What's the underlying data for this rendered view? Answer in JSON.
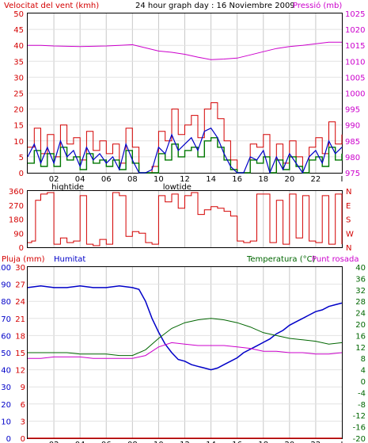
{
  "header": {
    "title": "24 hour graph day : 16 Noviembre 2009",
    "wind_label": "Velocitat del vent (kmh)",
    "pressure_label": "Pressió (mb)"
  },
  "bottom_header": {
    "rain_label": "Pluja (mm)",
    "humidity_label": "Humitat",
    "temp_label": "Temperatura (°C)",
    "dew_label": "Punt rosada"
  },
  "x_axis": {
    "ticks": [
      "02",
      "04",
      "06",
      "08",
      "10",
      "12",
      "14",
      "16",
      "18",
      "20",
      "22",
      "I"
    ],
    "tide_labels": [
      {
        "label": "hightide",
        "hour": 2
      },
      {
        "label": "lowtide",
        "hour": 10.5
      }
    ]
  },
  "colors": {
    "wind_gust": "#d40000",
    "wind_avg": "#0000c8",
    "wind_green": "#007700",
    "pressure": "#cc00cc",
    "humidity": "#0000c8",
    "temperature": "#006600",
    "dew_point": "#cc00cc",
    "rain": "#d40000",
    "grid": "#c8c8c8",
    "frame": "#000000"
  },
  "chart_data": [
    {
      "type": "line",
      "panel": "wind_pressure",
      "y_left": {
        "label": "Velocitat del vent (kmh)",
        "ticks": [
          0,
          5,
          10,
          15,
          20,
          25,
          30,
          35,
          40,
          45,
          50
        ],
        "range": [
          0,
          50
        ]
      },
      "y_right": {
        "label": "Pressió (mb)",
        "ticks": [
          975,
          980,
          985,
          990,
          995,
          1000,
          1005,
          1010,
          1015,
          1020,
          1025
        ],
        "range": [
          975,
          1025
        ]
      },
      "series": [
        {
          "name": "Pressió (mb)",
          "axis": "right",
          "x": [
            0,
            1,
            2,
            3,
            4,
            5,
            6,
            7,
            8,
            9,
            10,
            11,
            12,
            13,
            14,
            15,
            16,
            17,
            18,
            19,
            20,
            21,
            22,
            23,
            24
          ],
          "values": [
            1015,
            1015,
            1014.8,
            1014.7,
            1014.6,
            1014.7,
            1014.8,
            1015,
            1015.2,
            1014.2,
            1013.2,
            1012.8,
            1012.2,
            1011.3,
            1010.5,
            1010.7,
            1011,
            1012,
            1013,
            1014,
            1014.6,
            1015,
            1015.5,
            1016,
            1016
          ]
        },
        {
          "kind": "gust",
          "axis": "left",
          "x": [
            0,
            0.5,
            1,
            1.5,
            2,
            2.5,
            3,
            3.5,
            4,
            4.5,
            5,
            5.5,
            6,
            6.5,
            7,
            7.5,
            8,
            8.5,
            9,
            9.5,
            10,
            10.5,
            11,
            11.5,
            12,
            12.5,
            13,
            13.5,
            14,
            14.5,
            15,
            15.5,
            16,
            16.5,
            17,
            17.5,
            18,
            18.5,
            19,
            19.5,
            20,
            20.5,
            21,
            21.5,
            22,
            22.5,
            23,
            23.5,
            24
          ],
          "values": [
            8,
            14,
            6,
            12,
            5,
            15,
            9,
            11,
            4,
            13,
            7,
            10,
            6,
            9,
            3,
            14,
            8,
            0,
            0,
            2,
            13,
            10,
            20,
            12,
            15,
            18,
            11,
            20,
            22,
            17,
            10,
            4,
            0,
            0,
            9,
            8,
            12,
            0,
            9,
            3,
            10,
            5,
            0,
            8,
            11,
            6,
            16,
            9,
            12
          ]
        },
        {
          "kind": "average",
          "axis": "left",
          "x": [
            0,
            0.5,
            1,
            1.5,
            2,
            2.5,
            3,
            3.5,
            4,
            4.5,
            5,
            5.5,
            6,
            6.5,
            7,
            7.5,
            8,
            8.5,
            9,
            9.5,
            10,
            10.5,
            11,
            11.5,
            12,
            12.5,
            13,
            13.5,
            14,
            14.5,
            15,
            15.5,
            16,
            16.5,
            17,
            17.5,
            18,
            18.5,
            19,
            19.5,
            20,
            20.5,
            21,
            21.5,
            22,
            22.5,
            23,
            23.5,
            24
          ],
          "values": [
            5,
            9,
            3,
            8,
            3,
            10,
            5,
            7,
            2,
            8,
            4,
            6,
            3,
            5,
            1,
            9,
            4,
            0,
            0,
            1,
            8,
            6,
            12,
            7,
            9,
            11,
            7,
            13,
            14,
            11,
            6,
            2,
            0,
            0,
            5,
            4,
            7,
            0,
            5,
            1,
            6,
            3,
            0,
            5,
            7,
            3,
            10,
            6,
            8
          ]
        },
        {
          "kind": "green",
          "axis": "left",
          "x": [
            0,
            0.5,
            1,
            1.5,
            2,
            2.5,
            3,
            3.5,
            4,
            4.5,
            5,
            5.5,
            6,
            6.5,
            7,
            7.5,
            8,
            8.5,
            9,
            9.5,
            10,
            10.5,
            11,
            11.5,
            12,
            12.5,
            13,
            13.5,
            14,
            14.5,
            15,
            15.5,
            16,
            16.5,
            17,
            17.5,
            18,
            18.5,
            19,
            19.5,
            20,
            20.5,
            21,
            21.5,
            22,
            22.5,
            23,
            23.5,
            24
          ],
          "values": [
            3,
            7,
            2,
            6,
            2,
            8,
            4,
            5,
            1,
            6,
            3,
            4,
            2,
            4,
            1,
            7,
            3,
            0,
            0,
            0,
            6,
            4,
            9,
            5,
            7,
            8,
            5,
            10,
            11,
            8,
            4,
            1,
            0,
            0,
            4,
            3,
            5,
            0,
            4,
            1,
            5,
            2,
            0,
            4,
            5,
            2,
            8,
            4,
            6
          ]
        }
      ]
    },
    {
      "type": "line",
      "panel": "wind_direction",
      "y_left": {
        "ticks": [
          0,
          90,
          180,
          270,
          360
        ],
        "range": [
          0,
          360
        ]
      },
      "y_right": {
        "ticks": [
          "N",
          "E",
          "S",
          "W",
          "N"
        ]
      },
      "series": [
        {
          "kind": "direction",
          "x": [
            0,
            0.3,
            0.6,
            1,
            1.5,
            2,
            2.5,
            3,
            3.5,
            4,
            4.5,
            5,
            5.5,
            6,
            6.5,
            7,
            7.5,
            8,
            8.5,
            9,
            9.5,
            10,
            10.5,
            11,
            11.5,
            12,
            12.5,
            13,
            13.5,
            14,
            14.5,
            15,
            15.5,
            16,
            16.5,
            17,
            17.5,
            18,
            18.5,
            19,
            19.5,
            20,
            20.5,
            21,
            21.5,
            22,
            22.5,
            23,
            23.5,
            24
          ],
          "values": [
            30,
            40,
            300,
            340,
            350,
            20,
            60,
            30,
            40,
            330,
            20,
            10,
            50,
            20,
            350,
            330,
            70,
            100,
            90,
            30,
            20,
            330,
            290,
            340,
            250,
            330,
            350,
            210,
            240,
            260,
            250,
            230,
            200,
            40,
            30,
            40,
            340,
            340,
            30,
            300,
            20,
            340,
            60,
            330,
            40,
            30,
            330,
            20,
            340,
            20
          ]
        }
      ]
    },
    {
      "type": "line",
      "panel": "humidity_temperature",
      "y_left_rain": {
        "label": "Pluja (mm)",
        "ticks": [
          0,
          3,
          6,
          9,
          12,
          15,
          18,
          21,
          24,
          27,
          30
        ],
        "range": [
          0,
          30
        ]
      },
      "y_left_humidity": {
        "label": "Humitat",
        "ticks": [
          0,
          10,
          20,
          30,
          40,
          50,
          60,
          70,
          80,
          90,
          100
        ],
        "range": [
          0,
          100
        ]
      },
      "y_right": {
        "label": "Temperatura (°C)",
        "ticks": [
          -20,
          -16,
          -12,
          -8,
          -4,
          0,
          4,
          8,
          12,
          16,
          20,
          24,
          28,
          32,
          36,
          40
        ],
        "range": [
          -20,
          40
        ]
      },
      "series": [
        {
          "name": "Humitat",
          "axis": "humidity",
          "x": [
            0,
            1,
            2,
            3,
            4,
            5,
            6,
            7,
            8,
            8.5,
            9,
            9.5,
            10,
            10.5,
            11,
            11.5,
            12,
            12.5,
            13,
            13.5,
            14,
            14.5,
            15,
            15.5,
            16,
            16.5,
            17,
            17.5,
            18,
            18.5,
            19,
            19.5,
            20,
            20.5,
            21,
            21.5,
            22,
            22.5,
            23,
            23.5,
            24
          ],
          "values": [
            88,
            89,
            88,
            88,
            89,
            88,
            88,
            89,
            88,
            87,
            80,
            70,
            62,
            55,
            50,
            46,
            45,
            43,
            42,
            41,
            40,
            41,
            43,
            45,
            47,
            50,
            52,
            54,
            56,
            58,
            61,
            63,
            66,
            68,
            70,
            72,
            74,
            75,
            77,
            78,
            79
          ]
        },
        {
          "name": "Temperatura (°C)",
          "axis": "right",
          "x": [
            0,
            1,
            2,
            3,
            4,
            5,
            6,
            7,
            8,
            9,
            10,
            11,
            12,
            13,
            14,
            15,
            16,
            17,
            18,
            19,
            20,
            21,
            22,
            23,
            24
          ],
          "values": [
            10,
            10,
            10,
            10,
            9.5,
            9.5,
            9.5,
            9,
            9,
            11,
            15,
            18.5,
            20.5,
            21.5,
            22,
            21.5,
            20.5,
            19,
            17,
            16,
            15,
            14.5,
            14,
            13,
            13.5
          ]
        },
        {
          "name": "Punt rosada",
          "axis": "right",
          "x": [
            0,
            1,
            2,
            3,
            4,
            5,
            6,
            7,
            8,
            9,
            10,
            11,
            12,
            13,
            14,
            15,
            16,
            17,
            18,
            19,
            20,
            21,
            22,
            23,
            24
          ],
          "values": [
            8,
            8,
            8.5,
            8.5,
            8.5,
            8,
            8,
            8,
            8,
            9,
            12,
            13.5,
            13,
            12.5,
            12.5,
            12.5,
            12,
            11.5,
            10.5,
            10.5,
            10,
            10,
            9.5,
            9.5,
            10
          ]
        },
        {
          "name": "Pluja (mm)",
          "axis": "rain",
          "x": [
            0,
            24
          ],
          "values": [
            0,
            0
          ]
        }
      ]
    }
  ]
}
